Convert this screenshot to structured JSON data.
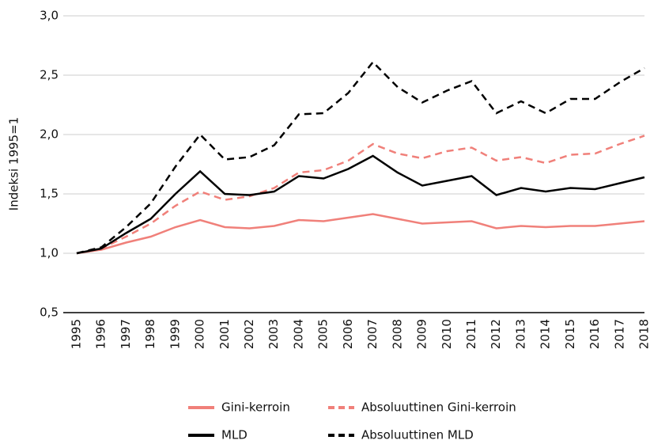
{
  "chart_data": {
    "type": "line",
    "y_label": "Indeksi 1995=1",
    "x": [
      1995,
      1996,
      1997,
      1998,
      1999,
      2000,
      2001,
      2002,
      2003,
      2004,
      2005,
      2006,
      2007,
      2008,
      2009,
      2010,
      2011,
      2012,
      2013,
      2014,
      2015,
      2016,
      2017,
      2018
    ],
    "ylim": [
      0.5,
      3.0
    ],
    "yticks": [
      {
        "value": 0.5,
        "label": "0,5"
      },
      {
        "value": 1.0,
        "label": "1,0"
      },
      {
        "value": 1.5,
        "label": "1,5"
      },
      {
        "value": 2.0,
        "label": "2,0"
      },
      {
        "value": 2.5,
        "label": "2,5"
      },
      {
        "value": 3.0,
        "label": "3,0"
      }
    ],
    "grid": true,
    "legend": "bottom",
    "series": [
      {
        "name": "Gini-kerroin",
        "color": "#f0807a",
        "linestyle": "solid",
        "values": [
          1.0,
          1.03,
          1.09,
          1.14,
          1.22,
          1.28,
          1.22,
          1.21,
          1.23,
          1.28,
          1.27,
          1.3,
          1.33,
          1.29,
          1.25,
          1.26,
          1.27,
          1.21,
          1.23,
          1.22,
          1.23,
          1.23,
          1.25,
          1.27
        ]
      },
      {
        "name": "Absoluuttinen Gini-kerroin",
        "color": "#f0807a",
        "linestyle": "dashed",
        "values": [
          1.0,
          1.04,
          1.14,
          1.25,
          1.4,
          1.52,
          1.45,
          1.48,
          1.55,
          1.68,
          1.7,
          1.78,
          1.92,
          1.84,
          1.8,
          1.86,
          1.89,
          1.78,
          1.81,
          1.76,
          1.83,
          1.84,
          1.92,
          1.99
        ]
      },
      {
        "name": "MLD",
        "color": "#000000",
        "linestyle": "solid",
        "values": [
          1.0,
          1.04,
          1.17,
          1.29,
          1.5,
          1.69,
          1.5,
          1.49,
          1.52,
          1.65,
          1.63,
          1.71,
          1.82,
          1.68,
          1.57,
          1.61,
          1.65,
          1.49,
          1.55,
          1.52,
          1.55,
          1.54,
          1.59,
          1.64
        ]
      },
      {
        "name": "Absoluuttinen MLD",
        "color": "#000000",
        "linestyle": "dashed",
        "values": [
          1.0,
          1.05,
          1.22,
          1.42,
          1.73,
          2.0,
          1.79,
          1.81,
          1.91,
          2.17,
          2.18,
          2.35,
          2.61,
          2.4,
          2.27,
          2.37,
          2.45,
          2.18,
          2.28,
          2.18,
          2.3,
          2.3,
          2.44,
          2.56
        ]
      }
    ]
  }
}
